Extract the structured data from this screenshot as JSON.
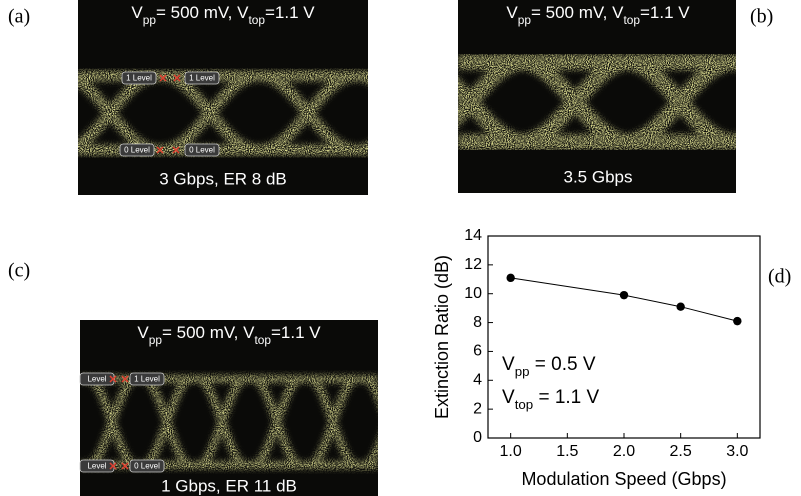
{
  "panels": [
    {
      "label": "(a)",
      "header": [
        "V",
        "pp",
        "= 500 mV, V",
        "top",
        "=1.1 V"
      ],
      "caption": "3 Gbps,  ER 8 dB",
      "markers": [
        "1 Level",
        "1 Level",
        "0 Level",
        "0 Level"
      ]
    },
    {
      "label": "(b)",
      "header": [
        "V",
        "pp",
        "= 500 mV, V",
        "top",
        "=1.1 V"
      ],
      "caption": "3.5 Gbps"
    },
    {
      "label": "(c)",
      "header": [
        "V",
        "pp",
        "= 500 mV, V",
        "top",
        "=1.1 V"
      ],
      "caption": "1 Gbps,  ER 11 dB",
      "markers": [
        "Level",
        "1 Level",
        "Level",
        "0 Level"
      ]
    },
    {
      "label": "(d)"
    }
  ],
  "chart_data": {
    "type": "line",
    "x_label": "Modulation Speed (Gbps)",
    "y_label": "Extinction Ratio (dB)",
    "annotations": [
      [
        "V",
        "pp",
        " = 0.5 V"
      ],
      [
        "V",
        "top",
        " = 1.1 V"
      ]
    ],
    "x": [
      1.0,
      2.0,
      2.5,
      3.0
    ],
    "series": [
      {
        "color": "#000000",
        "values": [
          11.1,
          9.9,
          9.1,
          8.1
        ]
      }
    ],
    "xlim": [
      0.8,
      3.2
    ],
    "xticks": [
      {
        "value": 1,
        "label": "1.0"
      },
      {
        "value": 1.5,
        "label": "1.5"
      },
      {
        "value": 2,
        "label": "2.0"
      },
      {
        "value": 2.5,
        "label": "2.5"
      },
      {
        "value": 3,
        "label": "3.0"
      }
    ],
    "ylim": [
      0,
      14
    ],
    "yticks": [
      0,
      2,
      4,
      6,
      8,
      10,
      12,
      14
    ]
  }
}
